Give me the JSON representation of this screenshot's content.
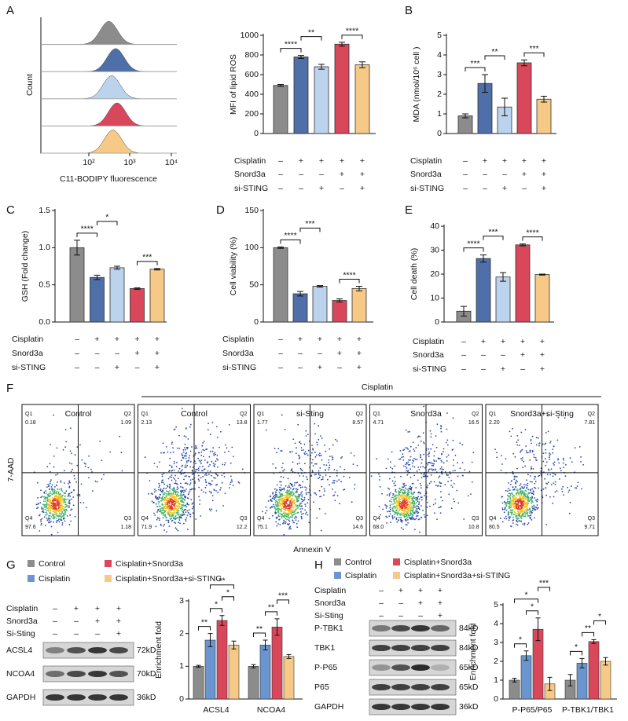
{
  "chart_data": [
    {
      "type": "bar",
      "panel": "A",
      "ylabel": "MFI of lipid ROS",
      "ylim": [
        0,
        1000
      ],
      "yticks": [
        0,
        200,
        400,
        600,
        800,
        1000
      ],
      "values": [
        490,
        780,
        680,
        910,
        700
      ],
      "errors": [
        10,
        15,
        25,
        20,
        30
      ],
      "colors": [
        "#8c8c8c",
        "#4f6fa8",
        "#bcd3ee",
        "#d9475a",
        "#f6c987"
      ],
      "significance": [
        "****",
        "**",
        "****"
      ],
      "conditions": [
        {
          "name": "Cisplatin",
          "marks": [
            "–",
            "+",
            "+",
            "+",
            "+"
          ]
        },
        {
          "name": "Snord3a",
          "marks": [
            "–",
            "–",
            "–",
            "+",
            "+"
          ]
        },
        {
          "name": "si-STING",
          "marks": [
            "–",
            "–",
            "+",
            "–",
            "+"
          ]
        }
      ]
    },
    {
      "type": "bar",
      "panel": "B",
      "ylabel": "MDA (nmol/10⁶ cell )",
      "ylim": [
        0,
        5
      ],
      "yticks": [
        0,
        1,
        2,
        3,
        4,
        5
      ],
      "values": [
        0.9,
        2.55,
        1.35,
        3.6,
        1.75
      ],
      "errors": [
        0.1,
        0.45,
        0.45,
        0.15,
        0.15
      ],
      "colors": [
        "#8c8c8c",
        "#4f6fa8",
        "#bcd3ee",
        "#d9475a",
        "#f6c987"
      ],
      "significance": [
        "***",
        "**",
        "***"
      ],
      "conditions": [
        {
          "name": "Cisplatin",
          "marks": [
            "–",
            "+",
            "+",
            "+",
            "+"
          ]
        },
        {
          "name": "Snord3a",
          "marks": [
            "–",
            "–",
            "–",
            "+",
            "+"
          ]
        },
        {
          "name": "si-STING",
          "marks": [
            "–",
            "–",
            "+",
            "–",
            "+"
          ]
        }
      ]
    },
    {
      "type": "bar",
      "panel": "C",
      "ylabel": "GSH (Fold change)",
      "ylim": [
        0,
        1.5
      ],
      "yticks": [
        {
          "value": 0,
          "label": "0.0"
        },
        0.5,
        {
          "value": 1,
          "label": "1.0"
        },
        1.5
      ],
      "values": [
        1.0,
        0.6,
        0.73,
        0.45,
        0.71
      ],
      "errors": [
        0.1,
        0.03,
        0.02,
        0.01,
        0.01
      ],
      "colors": [
        "#8c8c8c",
        "#4f6fa8",
        "#bcd3ee",
        "#d9475a",
        "#f6c987"
      ],
      "significance": [
        "****",
        "*",
        "***"
      ],
      "conditions": [
        {
          "name": "Cisplatin",
          "marks": [
            "–",
            "+",
            "+",
            "+",
            "+"
          ]
        },
        {
          "name": "Snord3a",
          "marks": [
            "–",
            "–",
            "–",
            "+",
            "+"
          ]
        },
        {
          "name": "si-STING",
          "marks": [
            "–",
            "–",
            "+",
            "–",
            "+"
          ]
        }
      ]
    },
    {
      "type": "bar",
      "panel": "D",
      "ylabel": "Cell viability (%)",
      "ylim": [
        0,
        150
      ],
      "yticks": [
        0,
        50,
        100,
        150
      ],
      "values": [
        100,
        38,
        48,
        29,
        45
      ],
      "errors": [
        1,
        3,
        1,
        2,
        3
      ],
      "colors": [
        "#8c8c8c",
        "#4f6fa8",
        "#bcd3ee",
        "#d9475a",
        "#f6c987"
      ],
      "significance": [
        "****",
        "***",
        "****"
      ],
      "conditions": [
        {
          "name": "Cisplatin",
          "marks": [
            "–",
            "+",
            "+",
            "+",
            "+"
          ]
        },
        {
          "name": "Snord3a",
          "marks": [
            "–",
            "–",
            "–",
            "+",
            "+"
          ]
        },
        {
          "name": "si-STING",
          "marks": [
            "–",
            "–",
            "+",
            "–",
            "+"
          ]
        }
      ]
    },
    {
      "type": "bar",
      "panel": "E",
      "ylabel": "Cell death (%)",
      "ylim": [
        0,
        40
      ],
      "yticks": [
        0,
        10,
        20,
        30,
        40
      ],
      "values": [
        4.5,
        26.5,
        18.8,
        32.2,
        19.8
      ],
      "errors": [
        2,
        1.5,
        1.8,
        0.4,
        0.2
      ],
      "colors": [
        "#8c8c8c",
        "#4f6fa8",
        "#bcd3ee",
        "#d9475a",
        "#f6c987"
      ],
      "significance": [
        "****",
        "***",
        "****"
      ],
      "conditions": [
        {
          "name": "Cisplatin",
          "marks": [
            "–",
            "+",
            "+",
            "+",
            "+"
          ]
        },
        {
          "name": "Snord3a",
          "marks": [
            "–",
            "–",
            "–",
            "+",
            "+"
          ]
        },
        {
          "name": "si-STING",
          "marks": [
            "–",
            "–",
            "+",
            "–",
            "+"
          ]
        }
      ]
    },
    {
      "type": "grouped",
      "panel": "G",
      "ylabel": "Enrichment fold",
      "ylim": [
        0,
        3
      ],
      "yticks": [
        0,
        1,
        2,
        3
      ],
      "categories": [
        "ACSL4",
        "NCOA4"
      ],
      "series": [
        {
          "name": "Control",
          "color": "#8c8c8c",
          "values": [
            1.0,
            1.0
          ],
          "errors": [
            0.03,
            0.05
          ]
        },
        {
          "name": "Cisplatin",
          "color": "#6b95cf",
          "values": [
            1.8,
            1.65
          ],
          "errors": [
            0.2,
            0.15
          ]
        },
        {
          "name": "Cisplatin+Snord3a",
          "color": "#d9475a",
          "values": [
            2.4,
            2.2
          ],
          "errors": [
            0.15,
            0.25
          ]
        },
        {
          "name": "Cisplatin+Snord3a+si-STING",
          "color": "#f6c987",
          "values": [
            1.65,
            1.3
          ],
          "errors": [
            0.12,
            0.06
          ]
        }
      ],
      "significance": [
        [
          "**",
          "*",
          "*",
          "**"
        ],
        [
          "**",
          "**",
          "***"
        ]
      ]
    },
    {
      "type": "grouped",
      "panel": "H",
      "ylabel": "Enrichment fold",
      "ylim": [
        0,
        5
      ],
      "yticks": [
        0,
        1,
        2,
        3,
        4,
        5
      ],
      "categories": [
        "P-P65/P65",
        "P-TBK1/TBK1"
      ],
      "series": [
        {
          "name": "Control",
          "color": "#8c8c8c",
          "values": [
            1.0,
            1.0
          ],
          "errors": [
            0.1,
            0.3
          ]
        },
        {
          "name": "Cisplatin",
          "color": "#6b95cf",
          "values": [
            2.3,
            1.9
          ],
          "errors": [
            0.25,
            0.25
          ]
        },
        {
          "name": "Cisplatin+Snord3a",
          "color": "#d9475a",
          "values": [
            3.7,
            3.05
          ],
          "errors": [
            0.6,
            0.1
          ]
        },
        {
          "name": "Cisplatin+Snord3a+si-STING",
          "color": "#f6c987",
          "values": [
            0.8,
            2.0
          ],
          "errors": [
            0.35,
            0.2
          ]
        }
      ],
      "significance": [
        [
          "*",
          "*",
          "*",
          "***"
        ],
        [
          "*",
          "**",
          "*"
        ]
      ]
    }
  ],
  "histogram": {
    "ylabel": "Count",
    "xlabel": "C11-BODIPY fluorescence",
    "xtick_labels": [
      "10²",
      "10³",
      "10⁴"
    ]
  },
  "flow": {
    "panel": "F",
    "header": "Cisplatin",
    "ylabel": "7-AAD",
    "xlabel": "Annexin V",
    "plots": [
      {
        "title": "Control",
        "quadrants": [
          {
            "label": "Q1",
            "value": "0.18"
          },
          {
            "label": "Q2",
            "value": "1.09"
          },
          {
            "label": "Q3",
            "value": "1.18"
          },
          {
            "label": "Q4",
            "value": "97.6"
          }
        ]
      },
      {
        "title": "Control",
        "quadrants": [
          {
            "label": "Q1",
            "value": "2.13"
          },
          {
            "label": "Q2",
            "value": "13.8"
          },
          {
            "label": "Q3",
            "value": "12.2"
          },
          {
            "label": "Q4",
            "value": "71.9"
          }
        ]
      },
      {
        "title": "si-Sting",
        "quadrants": [
          {
            "label": "Q1",
            "value": "1.77"
          },
          {
            "label": "Q2",
            "value": "8.57"
          },
          {
            "label": "Q3",
            "value": "14.6"
          },
          {
            "label": "Q4",
            "value": "75.1"
          }
        ]
      },
      {
        "title": "Snord3a",
        "quadrants": [
          {
            "label": "Q1",
            "value": "4.71"
          },
          {
            "label": "Q2",
            "value": "16.5"
          },
          {
            "label": "Q3",
            "value": "10.8"
          },
          {
            "label": "Q4",
            "value": "68.0"
          }
        ]
      },
      {
        "title": "Snord3a+si-Sting",
        "quadrants": [
          {
            "label": "Q1",
            "value": "2.20"
          },
          {
            "label": "Q2",
            "value": "7.81"
          },
          {
            "label": "Q3",
            "value": "9.71"
          },
          {
            "label": "Q4",
            "value": "80.5"
          }
        ]
      }
    ]
  },
  "blots": [
    {
      "conditions": [
        {
          "name": "Cisplatin",
          "marks": [
            "–",
            "+",
            "+",
            "+"
          ]
        },
        {
          "name": "Snord3a",
          "marks": [
            "–",
            "–",
            "+",
            "+"
          ]
        },
        {
          "name": "Si-Sting",
          "marks": [
            "–",
            "–",
            "–",
            "+"
          ]
        }
      ],
      "bands": [
        {
          "name": "ACSL4",
          "size": "72kD"
        },
        {
          "name": "NCOA4",
          "size": "70kD"
        },
        {
          "name": "GAPDH",
          "size": "36kD"
        }
      ]
    },
    {
      "conditions": [
        {
          "name": "Cisplatin",
          "marks": [
            "–",
            "+",
            "+",
            "+"
          ]
        },
        {
          "name": "Snord3a",
          "marks": [
            "–",
            "–",
            "+",
            "+"
          ]
        },
        {
          "name": "Si-Sting",
          "marks": [
            "–",
            "–",
            "–",
            "+"
          ]
        }
      ],
      "bands": [
        {
          "name": "P-TBK1",
          "size": "84kD"
        },
        {
          "name": "TBK1",
          "size": "84kD"
        },
        {
          "name": "P-P65",
          "size": "65kD"
        },
        {
          "name": "P65",
          "size": "65kD"
        },
        {
          "name": "GAPDH",
          "size": "36kD"
        }
      ]
    }
  ]
}
